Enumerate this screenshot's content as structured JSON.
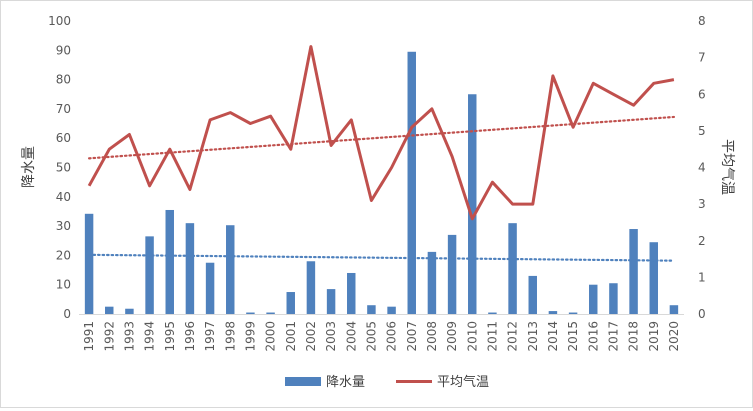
{
  "chart_data": {
    "type": "bar+line",
    "title": "",
    "categories": [
      "1991",
      "1992",
      "1993",
      "1994",
      "1995",
      "1996",
      "1997",
      "1998",
      "1999",
      "2000",
      "2001",
      "2002",
      "2003",
      "2004",
      "2005",
      "2006",
      "2007",
      "2008",
      "2009",
      "2010",
      "2011",
      "2012",
      "2013",
      "2014",
      "2015",
      "2016",
      "2017",
      "2018",
      "2019",
      "2020"
    ],
    "series": [
      {
        "name": "降水量",
        "type": "bar",
        "axis": "left",
        "color": "#4f81bd",
        "values": [
          34.2,
          2.5,
          1.8,
          26.5,
          35.5,
          31.0,
          17.5,
          30.3,
          0.5,
          0.5,
          7.5,
          18.0,
          8.5,
          14.0,
          3.0,
          2.5,
          89.5,
          21.2,
          27.0,
          75.0,
          0.5,
          31.0,
          13.0,
          1.0,
          0.5,
          10.0,
          10.5,
          29.0,
          24.5,
          3.0
        ],
        "trendline": {
          "start": 20.2,
          "end": 18.2,
          "color": "#4f81bd"
        }
      },
      {
        "name": "平均气温",
        "type": "line",
        "axis": "right",
        "color": "#c0504d",
        "values": [
          3.5,
          4.5,
          4.9,
          3.5,
          4.5,
          3.4,
          5.3,
          5.5,
          5.2,
          5.4,
          4.5,
          7.3,
          4.6,
          5.3,
          3.1,
          4.0,
          5.1,
          5.6,
          4.3,
          2.6,
          3.6,
          3.0,
          3.0,
          6.5,
          5.1,
          6.3,
          6.0,
          5.7,
          6.3,
          6.4
        ],
        "trendline": {
          "start": 4.25,
          "end": 5.38,
          "color": "#c0504d"
        }
      }
    ],
    "y_left": {
      "label": "降水量",
      "min": 0,
      "max": 100,
      "step": 10
    },
    "y_right": {
      "label": "平均气温",
      "min": 0,
      "max": 8,
      "step": 1
    },
    "grid": false,
    "legend": {
      "position": "bottom",
      "entries": [
        "降水量",
        "平均气温"
      ]
    }
  }
}
